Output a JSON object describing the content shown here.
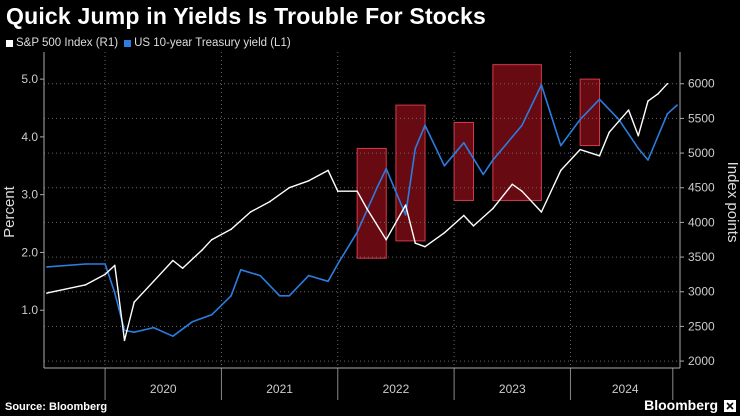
{
  "title": "Quick Jump in Yields Is Trouble For Stocks",
  "source": "Source: Bloomberg",
  "brand": "Bloomberg",
  "chart_data": {
    "type": "line",
    "title": "Quick Jump in Yields Is Trouble For Stocks",
    "ylabel_left": "Percent",
    "ylabel_right": "Index points",
    "ylim_left": [
      0.0,
      5.4
    ],
    "ylim_right": [
      1900,
      6400
    ],
    "left_ticks": [
      "1.0",
      "2.0",
      "3.0",
      "4.0",
      "5.0"
    ],
    "right_ticks": [
      "2000",
      "2500",
      "3000",
      "3500",
      "4000",
      "4500",
      "5000",
      "5500",
      "6000"
    ],
    "x_ticks": [
      "2020",
      "2021",
      "2022",
      "2023",
      "2024"
    ],
    "grid": true,
    "legend_position": "top-left",
    "colors": {
      "sp500": "#ffffff",
      "yield": "#2b7de0",
      "highlight": "#8a0d18",
      "highlight_border": "#d63a4a"
    },
    "series": [
      {
        "name": "S&P 500 Index (R1)",
        "axis": "right",
        "x": [
          "2019-07",
          "2019-11",
          "2020-01",
          "2020-02",
          "2020-03",
          "2020-04",
          "2020-06",
          "2020-08",
          "2020-09",
          "2020-11",
          "2020-12",
          "2021-02",
          "2021-04",
          "2021-06",
          "2021-08",
          "2021-10",
          "2021-12",
          "2022-01",
          "2022-03",
          "2022-04",
          "2022-06",
          "2022-08",
          "2022-09",
          "2022-10",
          "2022-12",
          "2023-02",
          "2023-03",
          "2023-05",
          "2023-07",
          "2023-08",
          "2023-10",
          "2023-12",
          "2024-02",
          "2024-04",
          "2024-05",
          "2024-07",
          "2024-08",
          "2024-09",
          "2024-10",
          "2024-11"
        ],
        "values": [
          2980,
          3100,
          3250,
          3380,
          2300,
          2850,
          3150,
          3450,
          3340,
          3600,
          3750,
          3900,
          4150,
          4300,
          4500,
          4600,
          4750,
          4450,
          4450,
          4200,
          3750,
          4250,
          3700,
          3650,
          3850,
          4100,
          3950,
          4200,
          4550,
          4450,
          4150,
          4750,
          5050,
          4960,
          5300,
          5620,
          5250,
          5750,
          5850,
          6000
        ]
      },
      {
        "name": "US 10-year Treasury yield (L1)",
        "axis": "left",
        "x": [
          "2019-07",
          "2019-11",
          "2020-01",
          "2020-02",
          "2020-03",
          "2020-04",
          "2020-06",
          "2020-08",
          "2020-10",
          "2020-12",
          "2021-02",
          "2021-03",
          "2021-05",
          "2021-07",
          "2021-08",
          "2021-10",
          "2021-12",
          "2022-01",
          "2022-03",
          "2022-05",
          "2022-06",
          "2022-08",
          "2022-09",
          "2022-10",
          "2022-12",
          "2023-02",
          "2023-04",
          "2023-05",
          "2023-07",
          "2023-08",
          "2023-10",
          "2023-12",
          "2024-02",
          "2024-04",
          "2024-06",
          "2024-08",
          "2024-09",
          "2024-11",
          "2024-12"
        ],
        "values": [
          1.75,
          1.8,
          1.8,
          1.3,
          0.65,
          0.62,
          0.7,
          0.55,
          0.8,
          0.92,
          1.25,
          1.7,
          1.6,
          1.25,
          1.25,
          1.6,
          1.5,
          1.8,
          2.35,
          3.1,
          3.45,
          2.65,
          3.8,
          4.2,
          3.5,
          3.9,
          3.35,
          3.6,
          4.0,
          4.2,
          4.9,
          3.85,
          4.3,
          4.65,
          4.3,
          3.8,
          3.6,
          4.4,
          4.55
        ]
      }
    ],
    "highlight_periods": [
      {
        "start": "2022-03",
        "end": "2022-06"
      },
      {
        "start": "2022-07",
        "end": "2022-10"
      },
      {
        "start": "2023-01",
        "end": "2023-03"
      },
      {
        "start": "2023-05",
        "end": "2023-10"
      },
      {
        "start": "2024-02",
        "end": "2024-04"
      }
    ]
  }
}
